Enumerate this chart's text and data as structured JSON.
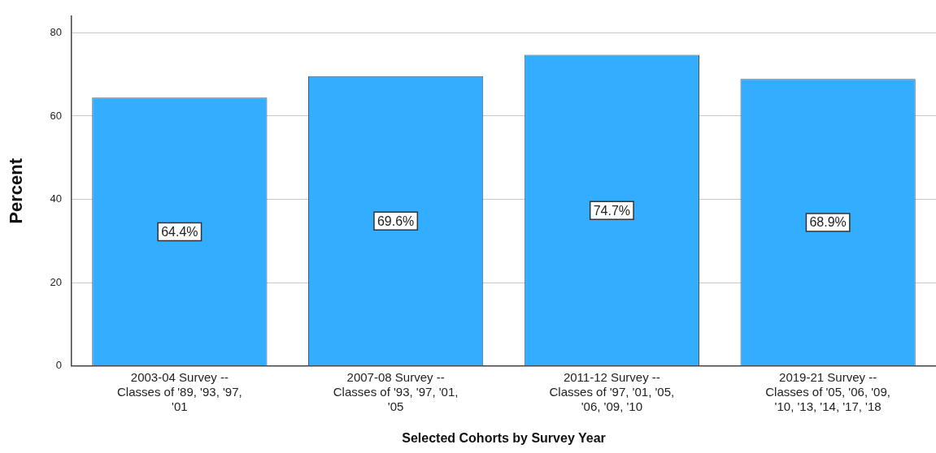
{
  "chart_data": {
    "type": "bar",
    "xlabel": "Selected Cohorts by Survey Year",
    "ylabel": "Percent",
    "categories": [
      "2003-04 Survey -- Classes of '89, '93, '97, '01",
      "2007-08 Survey -- Classes of '93, '97, '01, '05",
      "2011-12 Survey -- Classes of '97, '01, '05, '06, '09, '10",
      "2019-21 Survey -- Classes of '05, '06, '09, '10, '13, '14, '17, '18"
    ],
    "values": [
      64.4,
      69.6,
      74.7,
      68.9
    ],
    "value_labels": [
      "64.4%",
      "69.6%",
      "74.7%",
      "68.9%"
    ],
    "color": "#33adff",
    "ylim": [
      0,
      84
    ],
    "yticks": [
      0,
      20,
      40,
      60,
      80
    ],
    "grid": "y",
    "legend": false
  }
}
